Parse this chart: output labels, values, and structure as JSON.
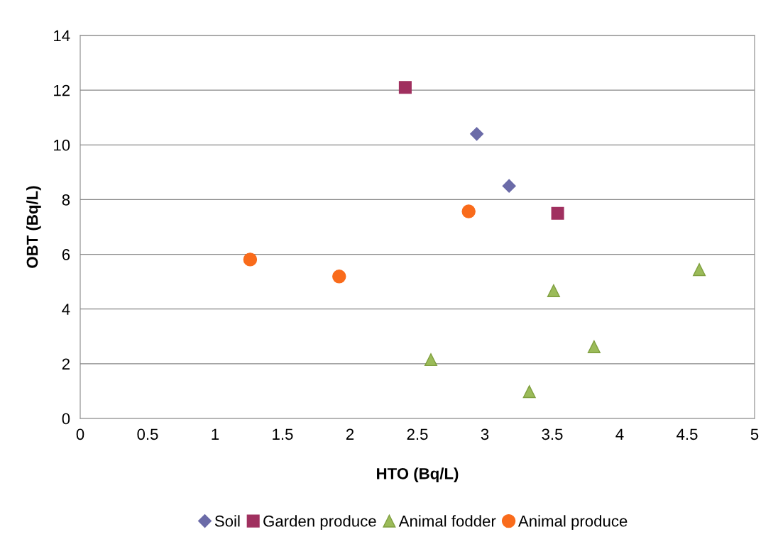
{
  "chart_data": {
    "type": "scatter",
    "xlabel": "HTO (Bq/L)",
    "ylabel": "OBT (Bq/L)",
    "xlim": [
      0,
      5
    ],
    "xticks": [
      0,
      {
        "value": 0.5,
        "label": "0.5"
      },
      1,
      {
        "value": 1.5,
        "label": "1.5"
      },
      2,
      {
        "value": 2.5,
        "label": "2.5"
      },
      3,
      {
        "value": 3.5,
        "label": "3.5"
      },
      4,
      {
        "value": 4.5,
        "label": "4.5"
      },
      5
    ],
    "ylim": [
      0,
      14
    ],
    "yticks": [
      0,
      2,
      4,
      6,
      8,
      10,
      12,
      14
    ],
    "grid": "y",
    "legend": "bottom",
    "series": [
      {
        "name": "Soil",
        "color": "#6b6ba8",
        "marker": "diamond",
        "x": [
          2.94,
          3.18
        ],
        "values": [
          10.4,
          8.5
        ]
      },
      {
        "name": "Garden produce",
        "color": "#a0305f",
        "marker": "square",
        "x": [
          2.41,
          3.54
        ],
        "values": [
          12.1,
          7.5
        ]
      },
      {
        "name": "Animal fodder",
        "color": "#9bbb59",
        "marker": "triangle",
        "x": [
          2.6,
          3.33,
          3.51,
          3.81,
          4.59
        ],
        "values": [
          2.15,
          0.98,
          4.67,
          2.62,
          5.44
        ]
      },
      {
        "name": "Animal produce",
        "color": "#f96b1b",
        "marker": "circle",
        "x": [
          1.26,
          1.92,
          2.88
        ],
        "values": [
          5.81,
          5.19,
          7.57
        ]
      }
    ]
  }
}
